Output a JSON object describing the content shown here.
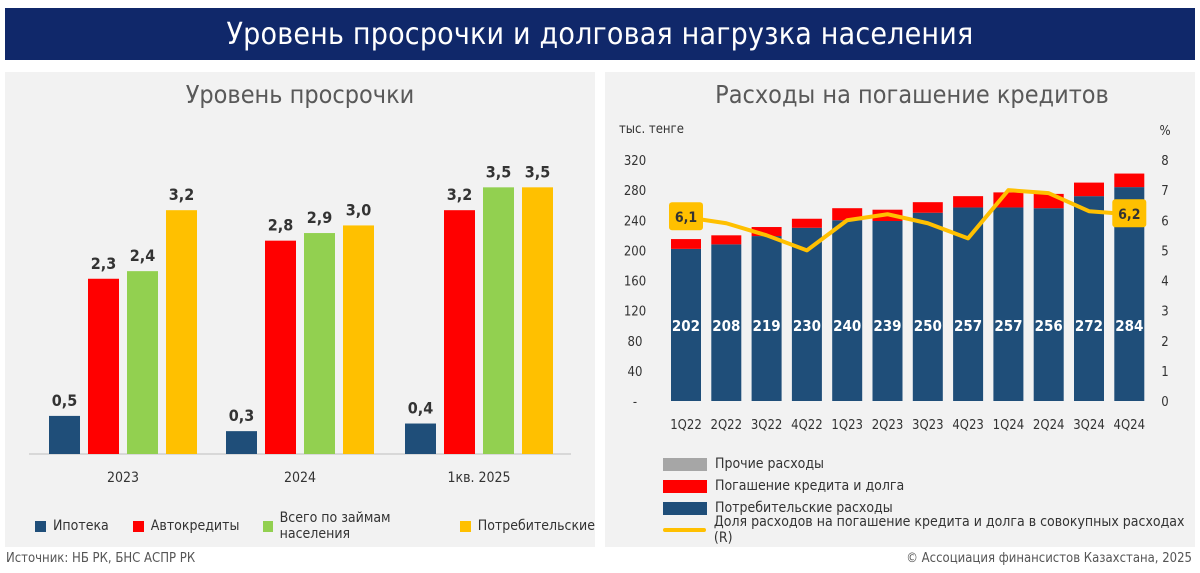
{
  "page_title": "Уровень просрочки и долговая нагрузка населения",
  "colors": {
    "title_bg": "#10286a",
    "ipoteka": "#1f4e79",
    "avto": "#ff0000",
    "vsego": "#92d050",
    "potreb": "#ffc000",
    "prochie": "#a6a6a6",
    "pogashenie": "#ff0000",
    "potreb_rashody": "#1f4e79",
    "dolya_line": "#ffc000"
  },
  "chart_data": [
    {
      "type": "bar",
      "title": "Уровень просрочки",
      "categories": [
        "2023",
        "2024",
        "1кв. 2025"
      ],
      "series": [
        {
          "name": "Ипотека",
          "values": [
            0.5,
            0.3,
            0.4
          ],
          "labels": [
            "0,5",
            "0,3",
            "0,4"
          ]
        },
        {
          "name": "Автокредиты",
          "values": [
            2.3,
            2.8,
            3.2
          ],
          "labels": [
            "2,3",
            "2,8",
            "3,2"
          ]
        },
        {
          "name": "Всего по займам населения",
          "values": [
            2.4,
            2.9,
            3.5
          ],
          "labels": [
            "2,4",
            "2,9",
            "3,5"
          ]
        },
        {
          "name": "Потребительские",
          "values": [
            3.2,
            3.0,
            3.5
          ],
          "labels": [
            "3,2",
            "3,0",
            "3,5"
          ]
        }
      ],
      "ylim": [
        0,
        4.2
      ],
      "grid": false,
      "legend_placement": "bottom"
    },
    {
      "type": "bar",
      "title": "Расходы на погашение кредитов",
      "ylabel": "тыс. тенге",
      "ylabel_right": "%",
      "categories": [
        "1Q22",
        "2Q22",
        "3Q22",
        "4Q22",
        "1Q23",
        "2Q23",
        "3Q23",
        "4Q23",
        "1Q24",
        "2Q24",
        "3Q24",
        "4Q24"
      ],
      "stacked": true,
      "series": [
        {
          "name": "Потребительские расходы",
          "values": [
            202,
            208,
            219,
            230,
            240,
            239,
            250,
            257,
            257,
            256,
            272,
            284
          ]
        },
        {
          "name": "Погашение кредита и долга",
          "values": [
            13,
            12,
            12,
            12,
            16,
            15,
            14,
            15,
            20,
            19,
            18,
            18
          ]
        },
        {
          "name": "Прочие расходы",
          "values": [
            0,
            0,
            0,
            0,
            0,
            0,
            0,
            0,
            0,
            0,
            0,
            0
          ]
        }
      ],
      "line_series": {
        "name": "Доля расходов на погашение кредита и долга в совокупных расходах (R)",
        "axis": "right",
        "values": [
          6.1,
          5.9,
          5.5,
          5.0,
          6.0,
          6.2,
          5.9,
          5.4,
          7.0,
          6.9,
          6.3,
          6.2
        ],
        "labels": {
          "first": "6,1",
          "last": "6,2"
        }
      },
      "y_ticks": [
        "-",
        "40",
        "80",
        "120",
        "160",
        "200",
        "240",
        "280",
        "320"
      ],
      "ylim": [
        0,
        320
      ],
      "y2_ticks": [
        "0",
        "1",
        "2",
        "3",
        "4",
        "5",
        "6",
        "7",
        "8"
      ],
      "y2lim": [
        0,
        8
      ],
      "grid": false,
      "legend_placement": "bottom"
    }
  ],
  "footer": {
    "source": "Источник: НБ РК, БНС АСПР РК",
    "copyright": "© Ассоциация финансистов Казахстана, 2025"
  }
}
